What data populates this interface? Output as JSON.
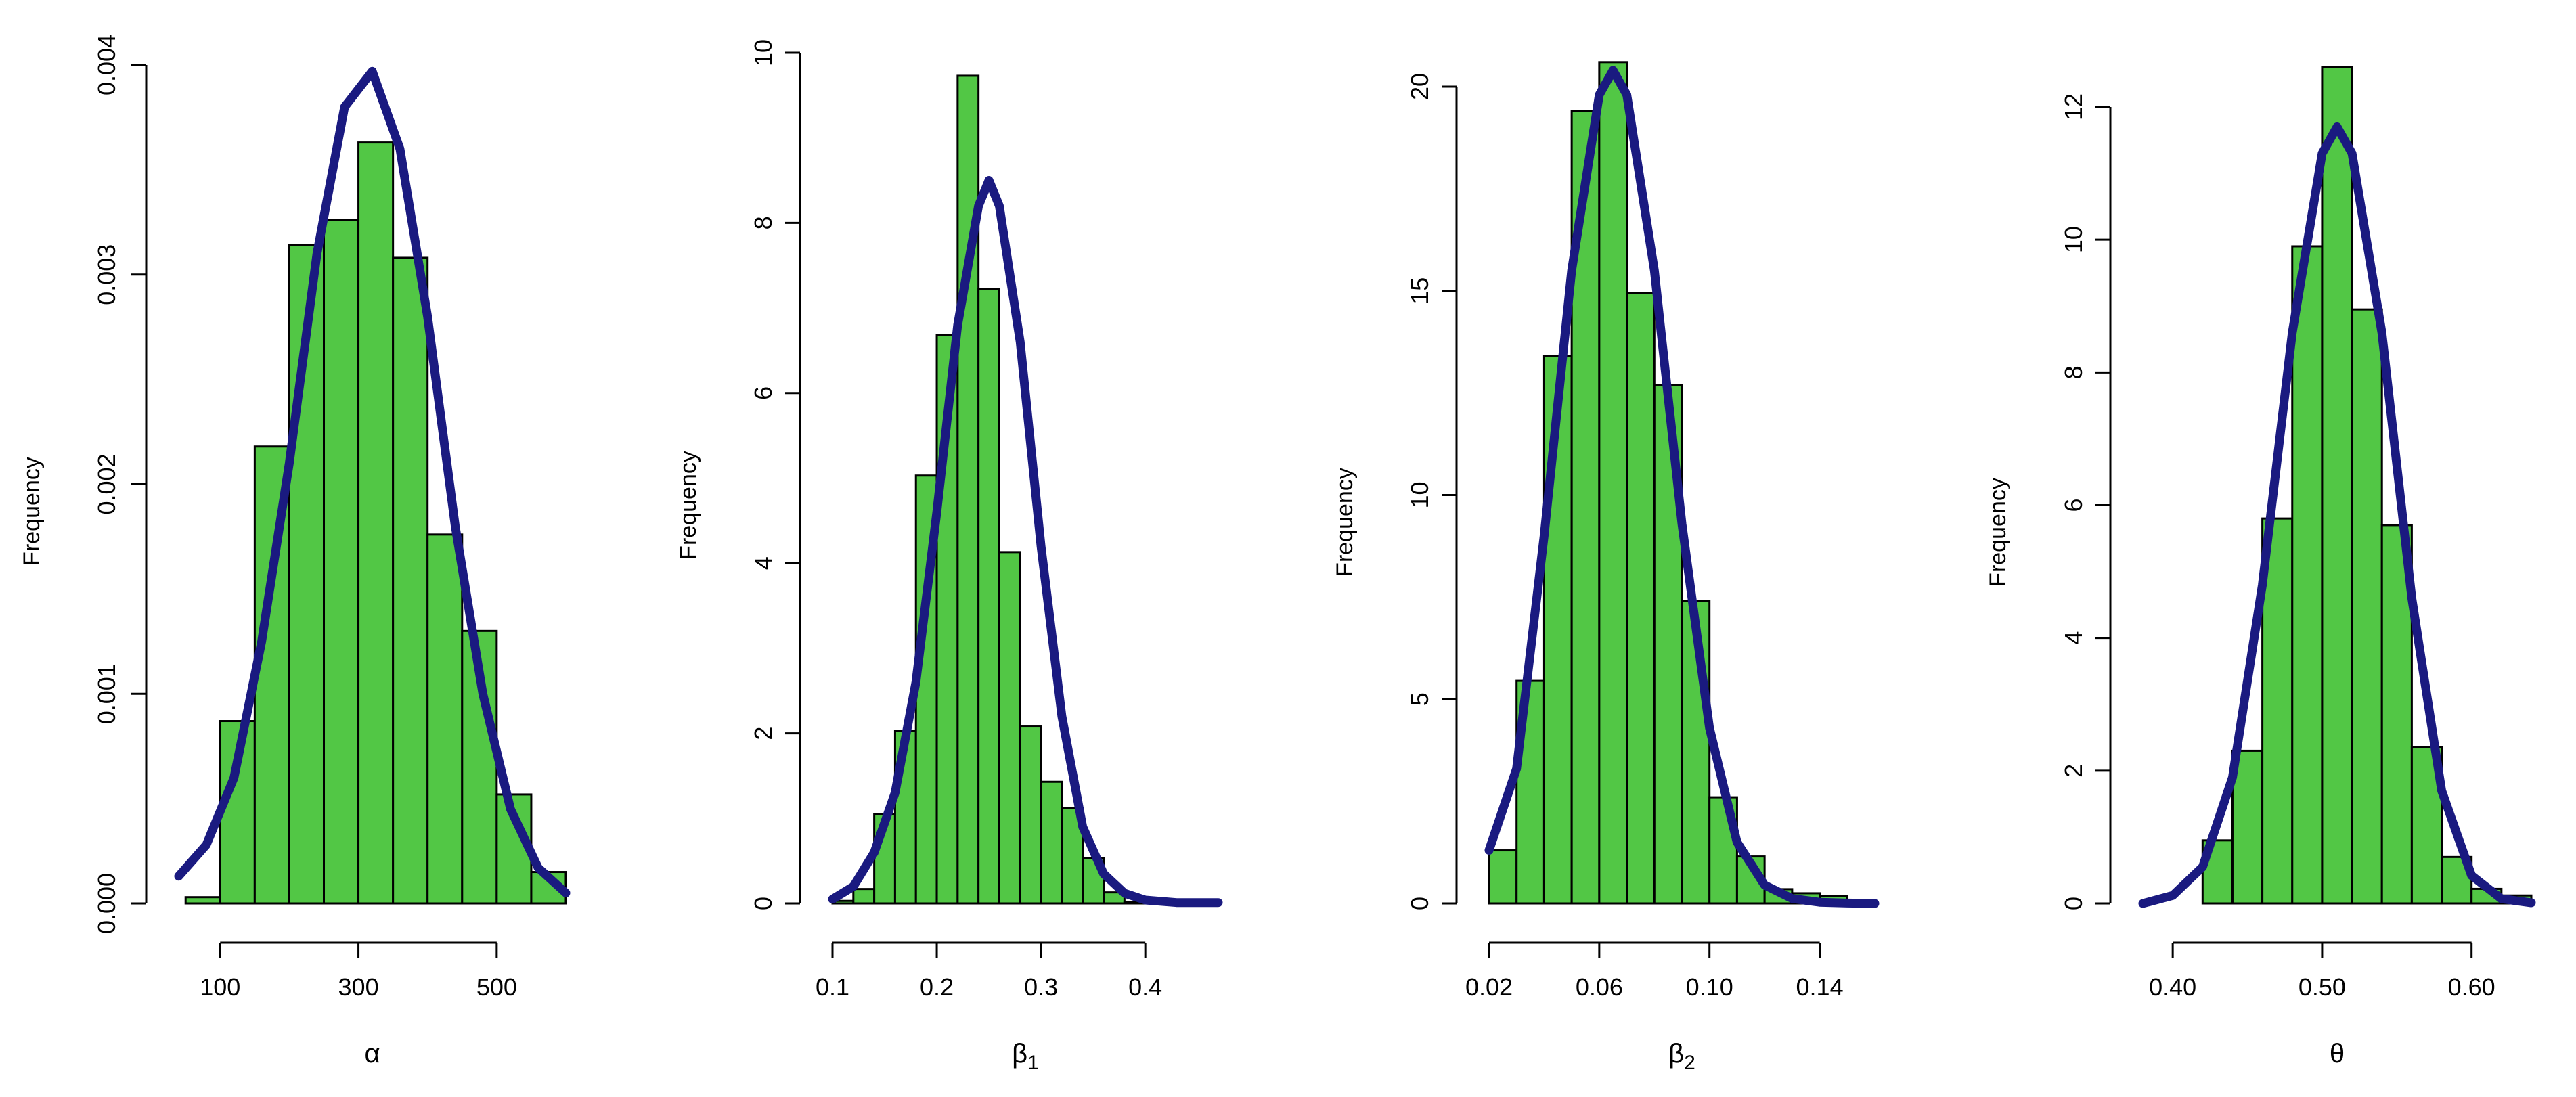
{
  "chart_data": [
    {
      "type": "histogram",
      "xlabel": "α",
      "ylabel": "Frequency",
      "xlim": [
        40,
        600
      ],
      "ylim": [
        0,
        0.004
      ],
      "xticks": [
        100,
        300,
        500
      ],
      "xtick_labels": [
        "100",
        "300",
        "500"
      ],
      "yticks": [
        0,
        0.001,
        0.002,
        0.003,
        0.004
      ],
      "ytick_labels": [
        "0.000",
        "0.001",
        "0.002",
        "0.003",
        "0.004"
      ],
      "bin_edges": [
        50,
        100,
        150,
        200,
        250,
        300,
        350,
        400,
        450,
        500,
        550,
        600
      ],
      "values": [
        3e-05,
        0.00087,
        0.00218,
        0.00314,
        0.00326,
        0.00363,
        0.00308,
        0.00176,
        0.0013,
        0.00052,
        0.00015
      ],
      "bar_color": "#52c745",
      "density_curve": {
        "color": "#1a1a80",
        "x": [
          40,
          80,
          120,
          160,
          200,
          240,
          280,
          320,
          360,
          400,
          440,
          480,
          520,
          560,
          600
        ],
        "y": [
          0.00013,
          0.00028,
          0.0006,
          0.00125,
          0.0021,
          0.0031,
          0.0038,
          0.00397,
          0.0036,
          0.0028,
          0.0018,
          0.001,
          0.00045,
          0.00017,
          5e-05
        ]
      }
    },
    {
      "type": "histogram",
      "xlabel": "β",
      "xlabel_sub": "1",
      "ylabel": "Frequency",
      "xlim": [
        0.1,
        0.47
      ],
      "ylim": [
        0,
        10
      ],
      "xticks": [
        0.1,
        0.2,
        0.3,
        0.4
      ],
      "xtick_labels": [
        "0.1",
        "0.2",
        "0.3",
        "0.4"
      ],
      "yticks": [
        0,
        2,
        4,
        6,
        8,
        10
      ],
      "ytick_labels": [
        "0",
        "2",
        "4",
        "6",
        "8",
        "10"
      ],
      "bin_edges": [
        0.1,
        0.12,
        0.14,
        0.16,
        0.18,
        0.2,
        0.22,
        0.24,
        0.26,
        0.28,
        0.3,
        0.32,
        0.34,
        0.36,
        0.38,
        0.4
      ],
      "values": [
        0.03,
        0.17,
        1.05,
        2.03,
        5.03,
        6.68,
        9.73,
        7.22,
        4.13,
        2.08,
        1.43,
        1.12,
        0.53,
        0.13,
        0.02
      ],
      "bar_color": "#52c745",
      "density_curve": {
        "color": "#1a1a80",
        "x": [
          0.1,
          0.12,
          0.14,
          0.16,
          0.18,
          0.2,
          0.22,
          0.24,
          0.25,
          0.26,
          0.28,
          0.3,
          0.32,
          0.34,
          0.36,
          0.38,
          0.4,
          0.43,
          0.47
        ],
        "y": [
          0.05,
          0.2,
          0.6,
          1.3,
          2.6,
          4.6,
          6.8,
          8.2,
          8.5,
          8.2,
          6.6,
          4.2,
          2.2,
          0.9,
          0.35,
          0.12,
          0.04,
          0.01,
          0.01
        ]
      }
    },
    {
      "type": "histogram",
      "xlabel": "β",
      "xlabel_sub": "2",
      "ylabel": "Frequency",
      "xlim": [
        0.02,
        0.16
      ],
      "ylim": [
        0,
        20
      ],
      "xticks": [
        0.02,
        0.06,
        0.1,
        0.14
      ],
      "xtick_labels": [
        "0.02",
        "0.06",
        "0.10",
        "0.14"
      ],
      "yticks": [
        0,
        5,
        10,
        15,
        20
      ],
      "ytick_labels": [
        "0",
        "5",
        "10",
        "15",
        "20"
      ],
      "bin_edges": [
        0.02,
        0.03,
        0.04,
        0.05,
        0.06,
        0.07,
        0.08,
        0.09,
        0.1,
        0.11,
        0.12,
        0.13,
        0.14,
        0.15
      ],
      "values": [
        1.3,
        5.45,
        13.4,
        19.4,
        20.6,
        14.95,
        12.7,
        7.4,
        2.6,
        1.15,
        0.35,
        0.25,
        0.18
      ],
      "bar_color": "#52c745",
      "density_curve": {
        "color": "#1a1a80",
        "x": [
          0.02,
          0.03,
          0.04,
          0.05,
          0.06,
          0.065,
          0.07,
          0.08,
          0.09,
          0.1,
          0.11,
          0.12,
          0.13,
          0.14,
          0.15,
          0.16
        ],
        "y": [
          1.3,
          3.3,
          9.0,
          15.5,
          19.8,
          20.4,
          19.8,
          15.5,
          9.3,
          4.3,
          1.5,
          0.45,
          0.12,
          0.03,
          0.01,
          0.0
        ]
      }
    },
    {
      "type": "histogram",
      "xlabel": "θ",
      "ylabel": "Frequency",
      "xlim": [
        0.38,
        0.64
      ],
      "ylim": [
        0,
        12
      ],
      "xticks": [
        0.4,
        0.5,
        0.6
      ],
      "xtick_labels": [
        "0.40",
        "0.50",
        "0.60"
      ],
      "yticks": [
        0,
        2,
        4,
        6,
        8,
        10,
        12
      ],
      "ytick_labels": [
        "0",
        "2",
        "4",
        "6",
        "8",
        "10",
        "12"
      ],
      "bin_edges": [
        0.42,
        0.44,
        0.46,
        0.48,
        0.5,
        0.52,
        0.54,
        0.56,
        0.58,
        0.6,
        0.62,
        0.64
      ],
      "values": [
        0.95,
        2.3,
        5.8,
        9.9,
        12.6,
        8.95,
        5.7,
        2.35,
        0.7,
        0.22,
        0.12
      ],
      "bar_color": "#52c745",
      "density_curve": {
        "color": "#1a1a80",
        "x": [
          0.38,
          0.4,
          0.42,
          0.44,
          0.46,
          0.48,
          0.5,
          0.51,
          0.52,
          0.54,
          0.56,
          0.58,
          0.6,
          0.62,
          0.64
        ],
        "y": [
          0.0,
          0.12,
          0.55,
          1.9,
          4.8,
          8.6,
          11.3,
          11.7,
          11.3,
          8.6,
          4.6,
          1.7,
          0.42,
          0.07,
          0.01
        ]
      }
    }
  ]
}
